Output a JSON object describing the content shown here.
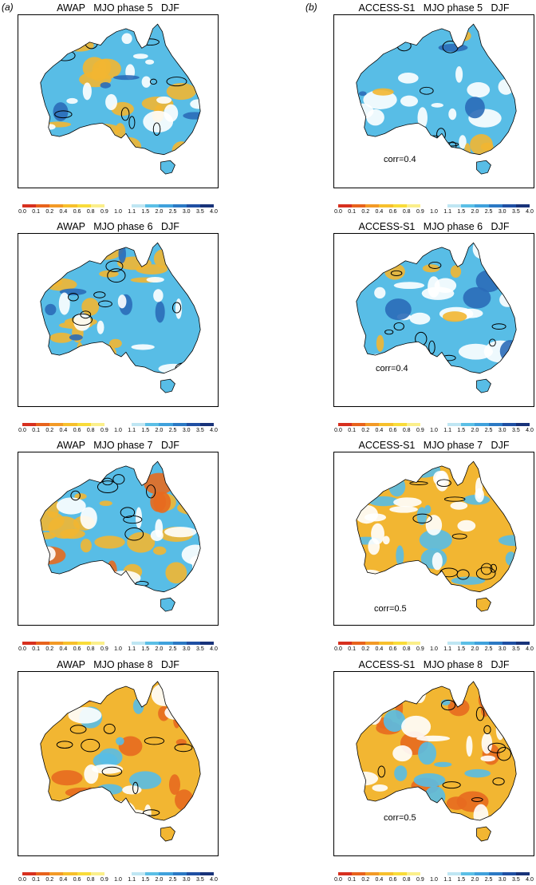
{
  "columns": [
    {
      "label": "(a)"
    },
    {
      "label": "(b)"
    }
  ],
  "panels": [
    {
      "title": "AWAP   MJO phase 5   DJF",
      "corr": "",
      "theme": "mixed-wet"
    },
    {
      "title": "ACCESS-S1   MJO phase 5   DJF",
      "corr": "corr=0.4",
      "theme": "wet"
    },
    {
      "title": "AWAP   MJO phase 6   DJF",
      "corr": "",
      "theme": "wetwest"
    },
    {
      "title": "ACCESS-S1   MJO phase 6   DJF",
      "corr": "corr=0.4",
      "theme": "wet"
    },
    {
      "title": "AWAP   MJO phase 7   DJF",
      "corr": "",
      "theme": "mixed-dry"
    },
    {
      "title": "ACCESS-S1   MJO phase 7   DJF",
      "corr": "corr=0.5",
      "theme": "drywest"
    },
    {
      "title": "AWAP   MJO phase 8   DJF",
      "corr": "",
      "theme": "dry"
    },
    {
      "title": "ACCESS-S1   MJO phase 8   DJF",
      "corr": "corr=0.5",
      "theme": "dry"
    }
  ],
  "colorbar": {
    "ticks": [
      "0.0",
      "0.1",
      "0.2",
      "0.4",
      "0.6",
      "0.8",
      "0.9",
      "1.0",
      "1.1",
      "1.5",
      "2.0",
      "2.5",
      "3.0",
      "3.5",
      "4.0"
    ],
    "colors": [
      "#d7301f",
      "#e8631c",
      "#f39a26",
      "#f7c02c",
      "#f9dc3a",
      "#fbef8a",
      "#ffffff",
      "#ffffff",
      "#bfe6f3",
      "#5bbfe6",
      "#3fa1dc",
      "#2b79c4",
      "#1f4fa3",
      "#18337a"
    ]
  },
  "theme_colors": {
    "wet": "#58bde6",
    "dry": "#f2b632",
    "deepdry": "#e76a1f",
    "deepwet": "#2b6cb8",
    "land": "#ffffff",
    "outline": "#000000"
  }
}
